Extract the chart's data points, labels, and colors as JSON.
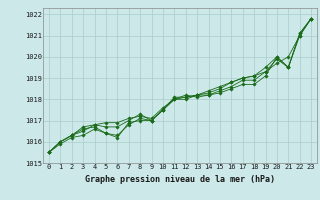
{
  "title": "Graphe pression niveau de la mer (hPa)",
  "bg_color": "#cce8e8",
  "grid_color": "#aacccc",
  "line_color": "#1a6b1a",
  "xlim": [
    -0.5,
    23.5
  ],
  "ylim": [
    1015,
    1022.3
  ],
  "yticks": [
    1015,
    1016,
    1017,
    1018,
    1019,
    1020,
    1021,
    1022
  ],
  "xticks": [
    0,
    1,
    2,
    3,
    4,
    5,
    6,
    7,
    8,
    9,
    10,
    11,
    12,
    13,
    14,
    15,
    16,
    17,
    18,
    19,
    20,
    21,
    22,
    23
  ],
  "series": [
    [
      1015.5,
      1015.9,
      1016.2,
      1016.3,
      1016.6,
      1016.4,
      1016.2,
      1016.9,
      1017.0,
      1017.0,
      1017.5,
      1018.0,
      1018.1,
      1018.2,
      1018.2,
      1018.3,
      1018.5,
      1018.7,
      1018.7,
      1019.1,
      1020.0,
      1019.5,
      1021.1,
      1021.8
    ],
    [
      1015.5,
      1016.0,
      1016.3,
      1016.5,
      1016.8,
      1016.9,
      1016.9,
      1017.1,
      1017.2,
      1017.1,
      1017.6,
      1018.0,
      1018.0,
      1018.2,
      1018.4,
      1018.6,
      1018.8,
      1019.0,
      1019.1,
      1019.3,
      1019.7,
      1020.0,
      1021.0,
      1021.8
    ],
    [
      1015.5,
      1016.0,
      1016.3,
      1016.6,
      1016.7,
      1016.4,
      1016.3,
      1016.8,
      1017.1,
      1017.0,
      1017.5,
      1018.1,
      1018.1,
      1018.2,
      1018.3,
      1018.5,
      1018.8,
      1019.0,
      1019.1,
      1019.5,
      1020.0,
      1019.5,
      1021.0,
      1021.8
    ],
    [
      1015.5,
      1016.0,
      1016.3,
      1016.7,
      1016.8,
      1016.7,
      1016.7,
      1017.0,
      1017.3,
      1017.0,
      1017.5,
      1018.0,
      1018.2,
      1018.1,
      1018.2,
      1018.4,
      1018.6,
      1018.9,
      1018.9,
      1019.3,
      1019.9,
      1019.5,
      1021.1,
      1021.8
    ]
  ],
  "title_fontsize": 6.0,
  "tick_fontsize": 5.0
}
